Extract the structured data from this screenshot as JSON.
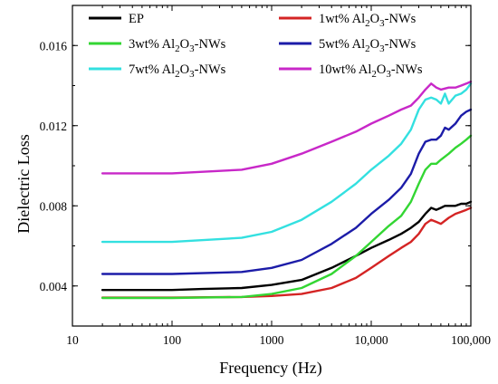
{
  "chart_data": {
    "type": "line",
    "xlabel": "Frequency (Hz)",
    "ylabel": "Dielectric Loss",
    "x_scale": "log",
    "xlim": [
      10,
      100000
    ],
    "ylim": [
      0.002,
      0.018
    ],
    "x_ticks": [
      10,
      100,
      1000,
      10000,
      100000
    ],
    "x_tick_labels": [
      "10",
      "100",
      "1000",
      "10,000",
      "100,000"
    ],
    "y_ticks": [
      0.004,
      0.008,
      0.012,
      0.016
    ],
    "y_tick_labels": [
      "0.004",
      "0.008",
      "0.012",
      "0.016"
    ],
    "grid": false,
    "legend_position": "top",
    "series": [
      {
        "name": "EP",
        "name_parts": [
          [
            "EP",
            ""
          ]
        ],
        "color": "#000000",
        "x": [
          20,
          50,
          100,
          200,
          500,
          1000,
          2000,
          4000,
          7000,
          10000,
          15000,
          20000,
          25000,
          30000,
          35000,
          40000,
          45000,
          50000,
          55000,
          60000,
          70000,
          80000,
          90000,
          100000
        ],
        "y": [
          0.0038,
          0.0038,
          0.0038,
          0.00385,
          0.0039,
          0.00405,
          0.0043,
          0.0049,
          0.0055,
          0.0059,
          0.0063,
          0.0066,
          0.0069,
          0.0072,
          0.0076,
          0.0079,
          0.0078,
          0.0079,
          0.008,
          0.008,
          0.008,
          0.0081,
          0.0081,
          0.0082
        ]
      },
      {
        "name": "1wt% Al2O3-NWs",
        "name_parts": [
          [
            "1wt%  Al",
            ""
          ],
          [
            "2",
            "sub"
          ],
          [
            "O",
            ""
          ],
          [
            "3",
            "sub"
          ],
          [
            "-NWs",
            ""
          ]
        ],
        "color": "#d42424",
        "x": [
          20,
          100,
          500,
          1000,
          2000,
          4000,
          7000,
          10000,
          15000,
          20000,
          25000,
          30000,
          35000,
          40000,
          45000,
          50000,
          60000,
          70000,
          80000,
          90000,
          100000
        ],
        "y": [
          0.00342,
          0.00342,
          0.00345,
          0.0035,
          0.0036,
          0.0039,
          0.0044,
          0.0049,
          0.0055,
          0.0059,
          0.0062,
          0.0066,
          0.0071,
          0.0073,
          0.0072,
          0.0071,
          0.0074,
          0.0076,
          0.0077,
          0.0078,
          0.0079
        ]
      },
      {
        "name": "3wt% Al2O3-NWs",
        "name_parts": [
          [
            "3wt%  Al",
            ""
          ],
          [
            "2",
            "sub"
          ],
          [
            "O",
            ""
          ],
          [
            "3",
            "sub"
          ],
          [
            "-NWs",
            ""
          ]
        ],
        "color": "#33d633",
        "x": [
          20,
          100,
          500,
          1000,
          2000,
          4000,
          7000,
          10000,
          15000,
          20000,
          25000,
          30000,
          35000,
          40000,
          45000,
          50000,
          60000,
          70000,
          80000,
          90000,
          100000
        ],
        "y": [
          0.0034,
          0.0034,
          0.00345,
          0.0036,
          0.0039,
          0.0046,
          0.0055,
          0.0062,
          0.007,
          0.0075,
          0.0082,
          0.0091,
          0.0098,
          0.0101,
          0.0101,
          0.0103,
          0.0106,
          0.0109,
          0.0111,
          0.0113,
          0.0115
        ]
      },
      {
        "name": "5wt% Al2O3-NWs",
        "name_parts": [
          [
            "5wt%  Al",
            ""
          ],
          [
            "2",
            "sub"
          ],
          [
            "O",
            ""
          ],
          [
            "3",
            "sub"
          ],
          [
            "-NWs",
            ""
          ]
        ],
        "color": "#1c1ca8",
        "x": [
          20,
          100,
          500,
          1000,
          2000,
          4000,
          7000,
          10000,
          15000,
          20000,
          25000,
          30000,
          35000,
          40000,
          45000,
          50000,
          55000,
          60000,
          70000,
          80000,
          90000,
          100000
        ],
        "y": [
          0.0046,
          0.0046,
          0.0047,
          0.0049,
          0.0053,
          0.0061,
          0.0069,
          0.0076,
          0.0083,
          0.0089,
          0.0096,
          0.0106,
          0.0112,
          0.0113,
          0.0113,
          0.0115,
          0.0119,
          0.0118,
          0.0121,
          0.0125,
          0.0127,
          0.0128
        ]
      },
      {
        "name": "7wt% Al2O3-NWs",
        "name_parts": [
          [
            "7wt%  Al",
            ""
          ],
          [
            "2",
            "sub"
          ],
          [
            "O",
            ""
          ],
          [
            "3",
            "sub"
          ],
          [
            "-NWs",
            ""
          ]
        ],
        "color": "#33e0e0",
        "x": [
          20,
          100,
          500,
          1000,
          2000,
          4000,
          7000,
          10000,
          15000,
          20000,
          25000,
          30000,
          35000,
          40000,
          45000,
          50000,
          55000,
          60000,
          70000,
          80000,
          90000,
          100000
        ],
        "y": [
          0.0062,
          0.0062,
          0.0064,
          0.0067,
          0.0073,
          0.0082,
          0.0091,
          0.0098,
          0.0105,
          0.0111,
          0.0118,
          0.0128,
          0.0133,
          0.0134,
          0.0133,
          0.0131,
          0.0136,
          0.0131,
          0.0135,
          0.0136,
          0.0138,
          0.0141
        ]
      },
      {
        "name": "10wt% Al2O3-NWs",
        "name_parts": [
          [
            "10wt%  Al",
            ""
          ],
          [
            "2",
            "sub"
          ],
          [
            "O",
            ""
          ],
          [
            "3",
            "sub"
          ],
          [
            "-NWs",
            ""
          ]
        ],
        "color": "#c828c8",
        "x": [
          20,
          100,
          500,
          1000,
          2000,
          4000,
          7000,
          10000,
          15000,
          20000,
          25000,
          30000,
          35000,
          40000,
          45000,
          50000,
          60000,
          70000,
          80000,
          90000,
          100000
        ],
        "y": [
          0.00962,
          0.00962,
          0.0098,
          0.0101,
          0.0106,
          0.0112,
          0.0117,
          0.0121,
          0.0125,
          0.0128,
          0.013,
          0.0134,
          0.0138,
          0.0141,
          0.0139,
          0.0138,
          0.0139,
          0.0139,
          0.014,
          0.0141,
          0.0142
        ]
      }
    ]
  }
}
